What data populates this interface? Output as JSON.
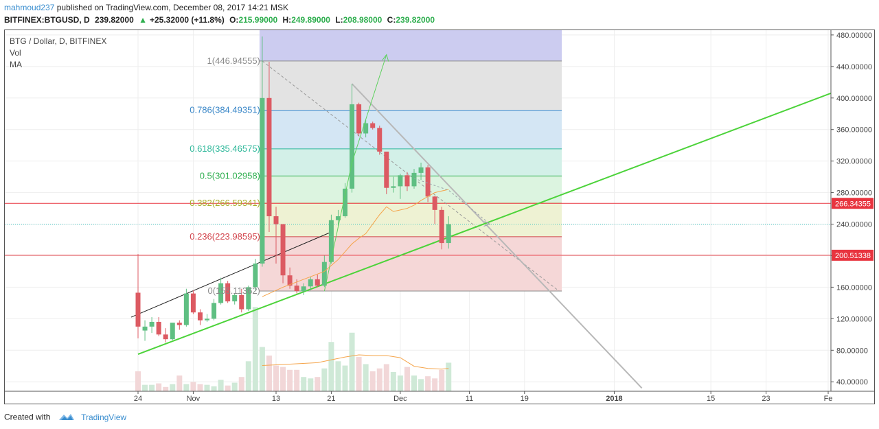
{
  "header": {
    "author": "mahmoud237",
    "published_text": "published on TradingView.com, December 08, 2017 14:21 MSK",
    "symbol": "BITFINEX:BTGUSD, D",
    "last_price": "239.82000",
    "change_arrow": "▲",
    "change": "+25.32000 (+11.8%)",
    "open_label": "O:",
    "open": "215.99000",
    "high_label": "H:",
    "high": "249.89000",
    "low_label": "L:",
    "low": "208.98000",
    "close_label": "C:",
    "close": "239.82000"
  },
  "legend": {
    "title": "BTG / Dollar, D, BITFINEX",
    "vol": "Vol",
    "ma": "MA"
  },
  "footer": {
    "created_with": "Created with",
    "brand": "TradingView"
  },
  "chart_data": {
    "type": "candlestick",
    "ylim": [
      28,
      486
    ],
    "y_ticks": [
      "480.00000",
      "440.00000",
      "400.00000",
      "360.00000",
      "320.00000",
      "280.00000",
      "240.00000",
      "200.00000",
      "160.00000",
      "120.00000",
      "80.00000",
      "40.00000"
    ],
    "y_tick_values": [
      480,
      440,
      400,
      360,
      320,
      280,
      240,
      200,
      160,
      120,
      80,
      40
    ],
    "x_ticks": [
      {
        "label": "24",
        "bar": 0
      },
      {
        "label": "Nov",
        "bar": 8
      },
      {
        "label": "13",
        "bar": 20
      },
      {
        "label": "21",
        "bar": 28
      },
      {
        "label": "Dec",
        "bar": 38
      },
      {
        "label": "11",
        "bar": 48
      },
      {
        "label": "19",
        "bar": 56
      },
      {
        "label": "2018",
        "bar": 69
      },
      {
        "label": "15",
        "bar": 83
      },
      {
        "label": "23",
        "bar": 91
      },
      {
        "label": "Fe",
        "bar": 100
      }
    ],
    "x_tick_bold": [
      "2018"
    ],
    "price_lines": [
      {
        "value": 266.34355,
        "label": "266.34355",
        "color": "#e8343f"
      },
      {
        "value": 200.51338,
        "label": "200.51338",
        "color": "#e8343f"
      }
    ],
    "fib": {
      "bar_start": 18,
      "bar_end": 61,
      "levels": [
        {
          "ratio": "1",
          "value": 446.94555,
          "label": "1(446.94555)",
          "color": "#8a8a8a",
          "fill": "#e3e3e3"
        },
        {
          "ratio": "0.786",
          "value": 384.49351,
          "label": "0.786(384.49351)",
          "color": "#3a87c8",
          "fill": "#d4e6f4"
        },
        {
          "ratio": "0.618",
          "value": 335.46575,
          "label": "0.618(335.46575)",
          "color": "#2eb89a",
          "fill": "#d3f0e8"
        },
        {
          "ratio": "0.5",
          "value": 301.02958,
          "label": "0.5(301.02958)",
          "color": "#2eae4e",
          "fill": "#dcf4e0"
        },
        {
          "ratio": "0.382",
          "value": 266.59341,
          "label": "0.382(266.59341)",
          "color": "#a8ae2a",
          "fill": "#eef2d3"
        },
        {
          "ratio": "0.236",
          "value": 223.98595,
          "label": "0.236(223.98595)",
          "color": "#d2444c",
          "fill": "#f5d7d7"
        },
        {
          "ratio": "0",
          "value": 155.11362,
          "label": "0(155.11362)",
          "color": "#8a8a8a",
          "fill": ""
        }
      ],
      "top_extension_value": 486,
      "top_extension_fill": "#ccccf0"
    },
    "candles": [
      {
        "o": 153,
        "h": 202,
        "l": 95,
        "c": 110
      },
      {
        "o": 105,
        "h": 118,
        "l": 92,
        "c": 110
      },
      {
        "o": 110,
        "h": 122,
        "l": 102,
        "c": 116
      },
      {
        "o": 116,
        "h": 122,
        "l": 98,
        "c": 100
      },
      {
        "o": 100,
        "h": 108,
        "l": 90,
        "c": 94
      },
      {
        "o": 94,
        "h": 112,
        "l": 93,
        "c": 115
      },
      {
        "o": 115,
        "h": 118,
        "l": 106,
        "c": 112
      },
      {
        "o": 112,
        "h": 158,
        "l": 110,
        "c": 152
      },
      {
        "o": 152,
        "h": 156,
        "l": 126,
        "c": 128
      },
      {
        "o": 128,
        "h": 132,
        "l": 112,
        "c": 118
      },
      {
        "o": 118,
        "h": 126,
        "l": 116,
        "c": 120
      },
      {
        "o": 120,
        "h": 145,
        "l": 118,
        "c": 140
      },
      {
        "o": 140,
        "h": 172,
        "l": 138,
        "c": 165
      },
      {
        "o": 165,
        "h": 168,
        "l": 140,
        "c": 142
      },
      {
        "o": 142,
        "h": 152,
        "l": 138,
        "c": 150
      },
      {
        "o": 150,
        "h": 158,
        "l": 128,
        "c": 132
      },
      {
        "o": 132,
        "h": 162,
        "l": 130,
        "c": 160
      },
      {
        "o": 160,
        "h": 196,
        "l": 156,
        "c": 190
      },
      {
        "o": 190,
        "h": 478,
        "l": 186,
        "c": 400
      },
      {
        "o": 400,
        "h": 446,
        "l": 230,
        "c": 250
      },
      {
        "o": 250,
        "h": 262,
        "l": 190,
        "c": 240
      },
      {
        "o": 240,
        "h": 238,
        "l": 165,
        "c": 175
      },
      {
        "o": 175,
        "h": 185,
        "l": 158,
        "c": 162
      },
      {
        "o": 162,
        "h": 170,
        "l": 152,
        "c": 155
      },
      {
        "o": 155,
        "h": 165,
        "l": 150,
        "c": 161
      },
      {
        "o": 161,
        "h": 173,
        "l": 156,
        "c": 170
      },
      {
        "o": 170,
        "h": 176,
        "l": 160,
        "c": 162
      },
      {
        "o": 162,
        "h": 200,
        "l": 160,
        "c": 192
      },
      {
        "o": 192,
        "h": 252,
        "l": 190,
        "c": 245
      },
      {
        "o": 245,
        "h": 258,
        "l": 238,
        "c": 250
      },
      {
        "o": 250,
        "h": 292,
        "l": 248,
        "c": 285
      },
      {
        "o": 285,
        "h": 418,
        "l": 280,
        "c": 392
      },
      {
        "o": 392,
        "h": 394,
        "l": 352,
        "c": 355
      },
      {
        "o": 355,
        "h": 372,
        "l": 350,
        "c": 368
      },
      {
        "o": 368,
        "h": 370,
        "l": 360,
        "c": 362
      },
      {
        "o": 362,
        "h": 365,
        "l": 328,
        "c": 332
      },
      {
        "o": 332,
        "h": 330,
        "l": 278,
        "c": 286
      },
      {
        "o": 286,
        "h": 300,
        "l": 280,
        "c": 288
      },
      {
        "o": 288,
        "h": 304,
        "l": 272,
        "c": 302
      },
      {
        "o": 302,
        "h": 306,
        "l": 282,
        "c": 288
      },
      {
        "o": 288,
        "h": 310,
        "l": 285,
        "c": 305
      },
      {
        "o": 305,
        "h": 318,
        "l": 296,
        "c": 312
      },
      {
        "o": 312,
        "h": 315,
        "l": 268,
        "c": 275
      },
      {
        "o": 275,
        "h": 276,
        "l": 240,
        "c": 258
      },
      {
        "o": 258,
        "h": 262,
        "l": 208,
        "c": 216
      },
      {
        "o": 216,
        "h": 250,
        "l": 209,
        "c": 240
      }
    ],
    "volume": [
      28,
      9,
      9,
      11,
      6,
      10,
      22,
      10,
      13,
      10,
      9,
      7,
      16,
      8,
      12,
      20,
      42,
      118,
      62,
      50,
      36,
      34,
      30,
      30,
      20,
      18,
      20,
      32,
      69,
      42,
      36,
      82,
      48,
      38,
      28,
      32,
      38,
      27,
      22,
      34,
      22,
      17,
      21,
      18,
      30,
      40
    ],
    "volume_ylim": [
      0,
      125
    ],
    "ma_price": [
      {
        "bar": 18,
        "v": 148
      },
      {
        "bar": 21,
        "v": 160
      },
      {
        "bar": 24,
        "v": 170
      },
      {
        "bar": 27,
        "v": 180
      },
      {
        "bar": 29,
        "v": 195
      },
      {
        "bar": 30,
        "v": 205
      },
      {
        "bar": 31,
        "v": 215
      },
      {
        "bar": 32,
        "v": 222
      },
      {
        "bar": 33,
        "v": 228
      },
      {
        "bar": 34,
        "v": 240
      },
      {
        "bar": 35,
        "v": 252
      },
      {
        "bar": 36,
        "v": 262
      },
      {
        "bar": 37,
        "v": 256
      },
      {
        "bar": 38,
        "v": 258
      },
      {
        "bar": 39,
        "v": 260
      },
      {
        "bar": 40,
        "v": 264
      },
      {
        "bar": 41,
        "v": 270
      },
      {
        "bar": 42,
        "v": 275
      },
      {
        "bar": 43,
        "v": 280
      },
      {
        "bar": 44,
        "v": 282
      },
      {
        "bar": 45,
        "v": 284
      }
    ],
    "ma_volume": [
      {
        "bar": 18,
        "v": 36
      },
      {
        "bar": 22,
        "v": 38
      },
      {
        "bar": 26,
        "v": 40
      },
      {
        "bar": 28,
        "v": 44
      },
      {
        "bar": 30,
        "v": 48
      },
      {
        "bar": 32,
        "v": 51
      },
      {
        "bar": 34,
        "v": 50
      },
      {
        "bar": 36,
        "v": 50
      },
      {
        "bar": 38,
        "v": 47
      },
      {
        "bar": 40,
        "v": 35
      },
      {
        "bar": 42,
        "v": 32
      },
      {
        "bar": 44,
        "v": 31
      },
      {
        "bar": 45,
        "v": 32
      }
    ],
    "drawings": {
      "green_trend": {
        "b1": 0,
        "v1": 75,
        "b2": 101,
        "v2": 408,
        "color": "#4cd33a"
      },
      "black_channel": {
        "b1": 0,
        "v1": 122,
        "b2": 28,
        "v2": 230,
        "color": "#222222"
      },
      "gray_trend": {
        "b1": 31,
        "v1": 418,
        "b2": 73,
        "v2": 32,
        "color": "#b8b8b8"
      },
      "fib_diagonal": {
        "b1": 18,
        "v1": 446.9,
        "b2": 61,
        "v2": 155.1,
        "color": "#999999"
      },
      "green_arrow": [
        {
          "b": 27,
          "v": 155
        },
        {
          "b": 31,
          "v": 318
        },
        {
          "b": 36,
          "v": 455
        }
      ],
      "gray_arrow": [
        {
          "b": 40,
          "v": 298
        },
        {
          "b": 45,
          "v": 283
        },
        {
          "b": 51,
          "v": 240
        }
      ]
    },
    "colors": {
      "up": "#5fbf82",
      "down": "#dc5a62",
      "up_vol": "#cfe9d7",
      "down_vol": "#f2d7d8",
      "ma": "#f5a44a",
      "grid": "#eeeeee",
      "axis": "#555555"
    }
  }
}
